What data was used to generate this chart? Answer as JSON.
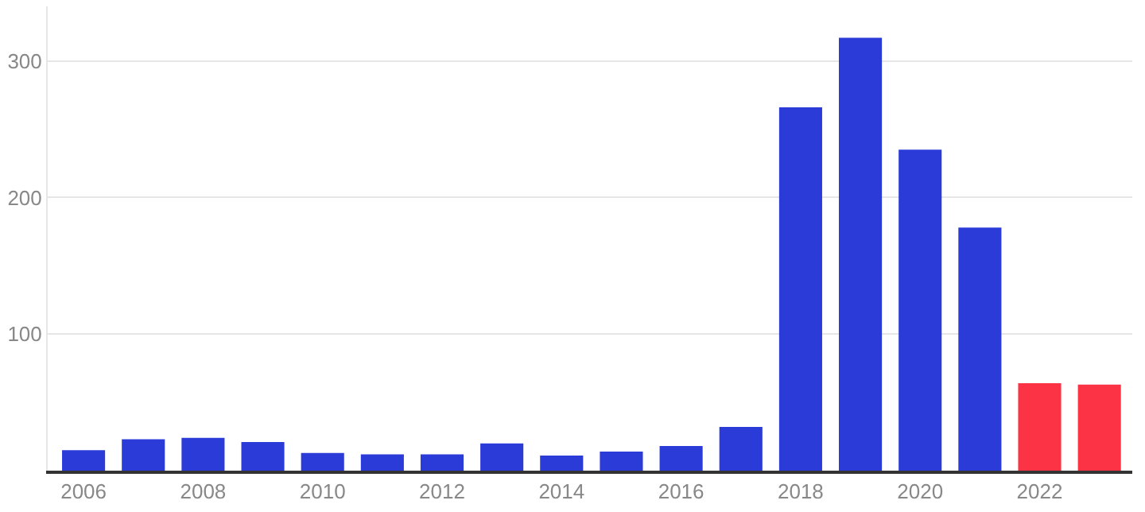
{
  "chart_data": {
    "type": "bar",
    "categories": [
      "2006",
      null,
      "2008",
      null,
      "2010",
      null,
      "2012",
      null,
      "2014",
      null,
      "2016",
      null,
      "2018",
      null,
      "2020",
      null,
      "2022",
      null
    ],
    "values": [
      15,
      23,
      24,
      21,
      13,
      12,
      12,
      20,
      11,
      14,
      18,
      32,
      266,
      317,
      235,
      178,
      64,
      63
    ],
    "colors": [
      "#2a3bd8",
      "#2a3bd8",
      "#2a3bd8",
      "#2a3bd8",
      "#2a3bd8",
      "#2a3bd8",
      "#2a3bd8",
      "#2a3bd8",
      "#2a3bd8",
      "#2a3bd8",
      "#2a3bd8",
      "#2a3bd8",
      "#2a3bd8",
      "#2a3bd8",
      "#2a3bd8",
      "#2a3bd8",
      "#fc3344",
      "#fc3344"
    ],
    "ylim": [
      0,
      340
    ],
    "yticks": [
      100,
      200,
      300
    ],
    "grid": "y"
  }
}
